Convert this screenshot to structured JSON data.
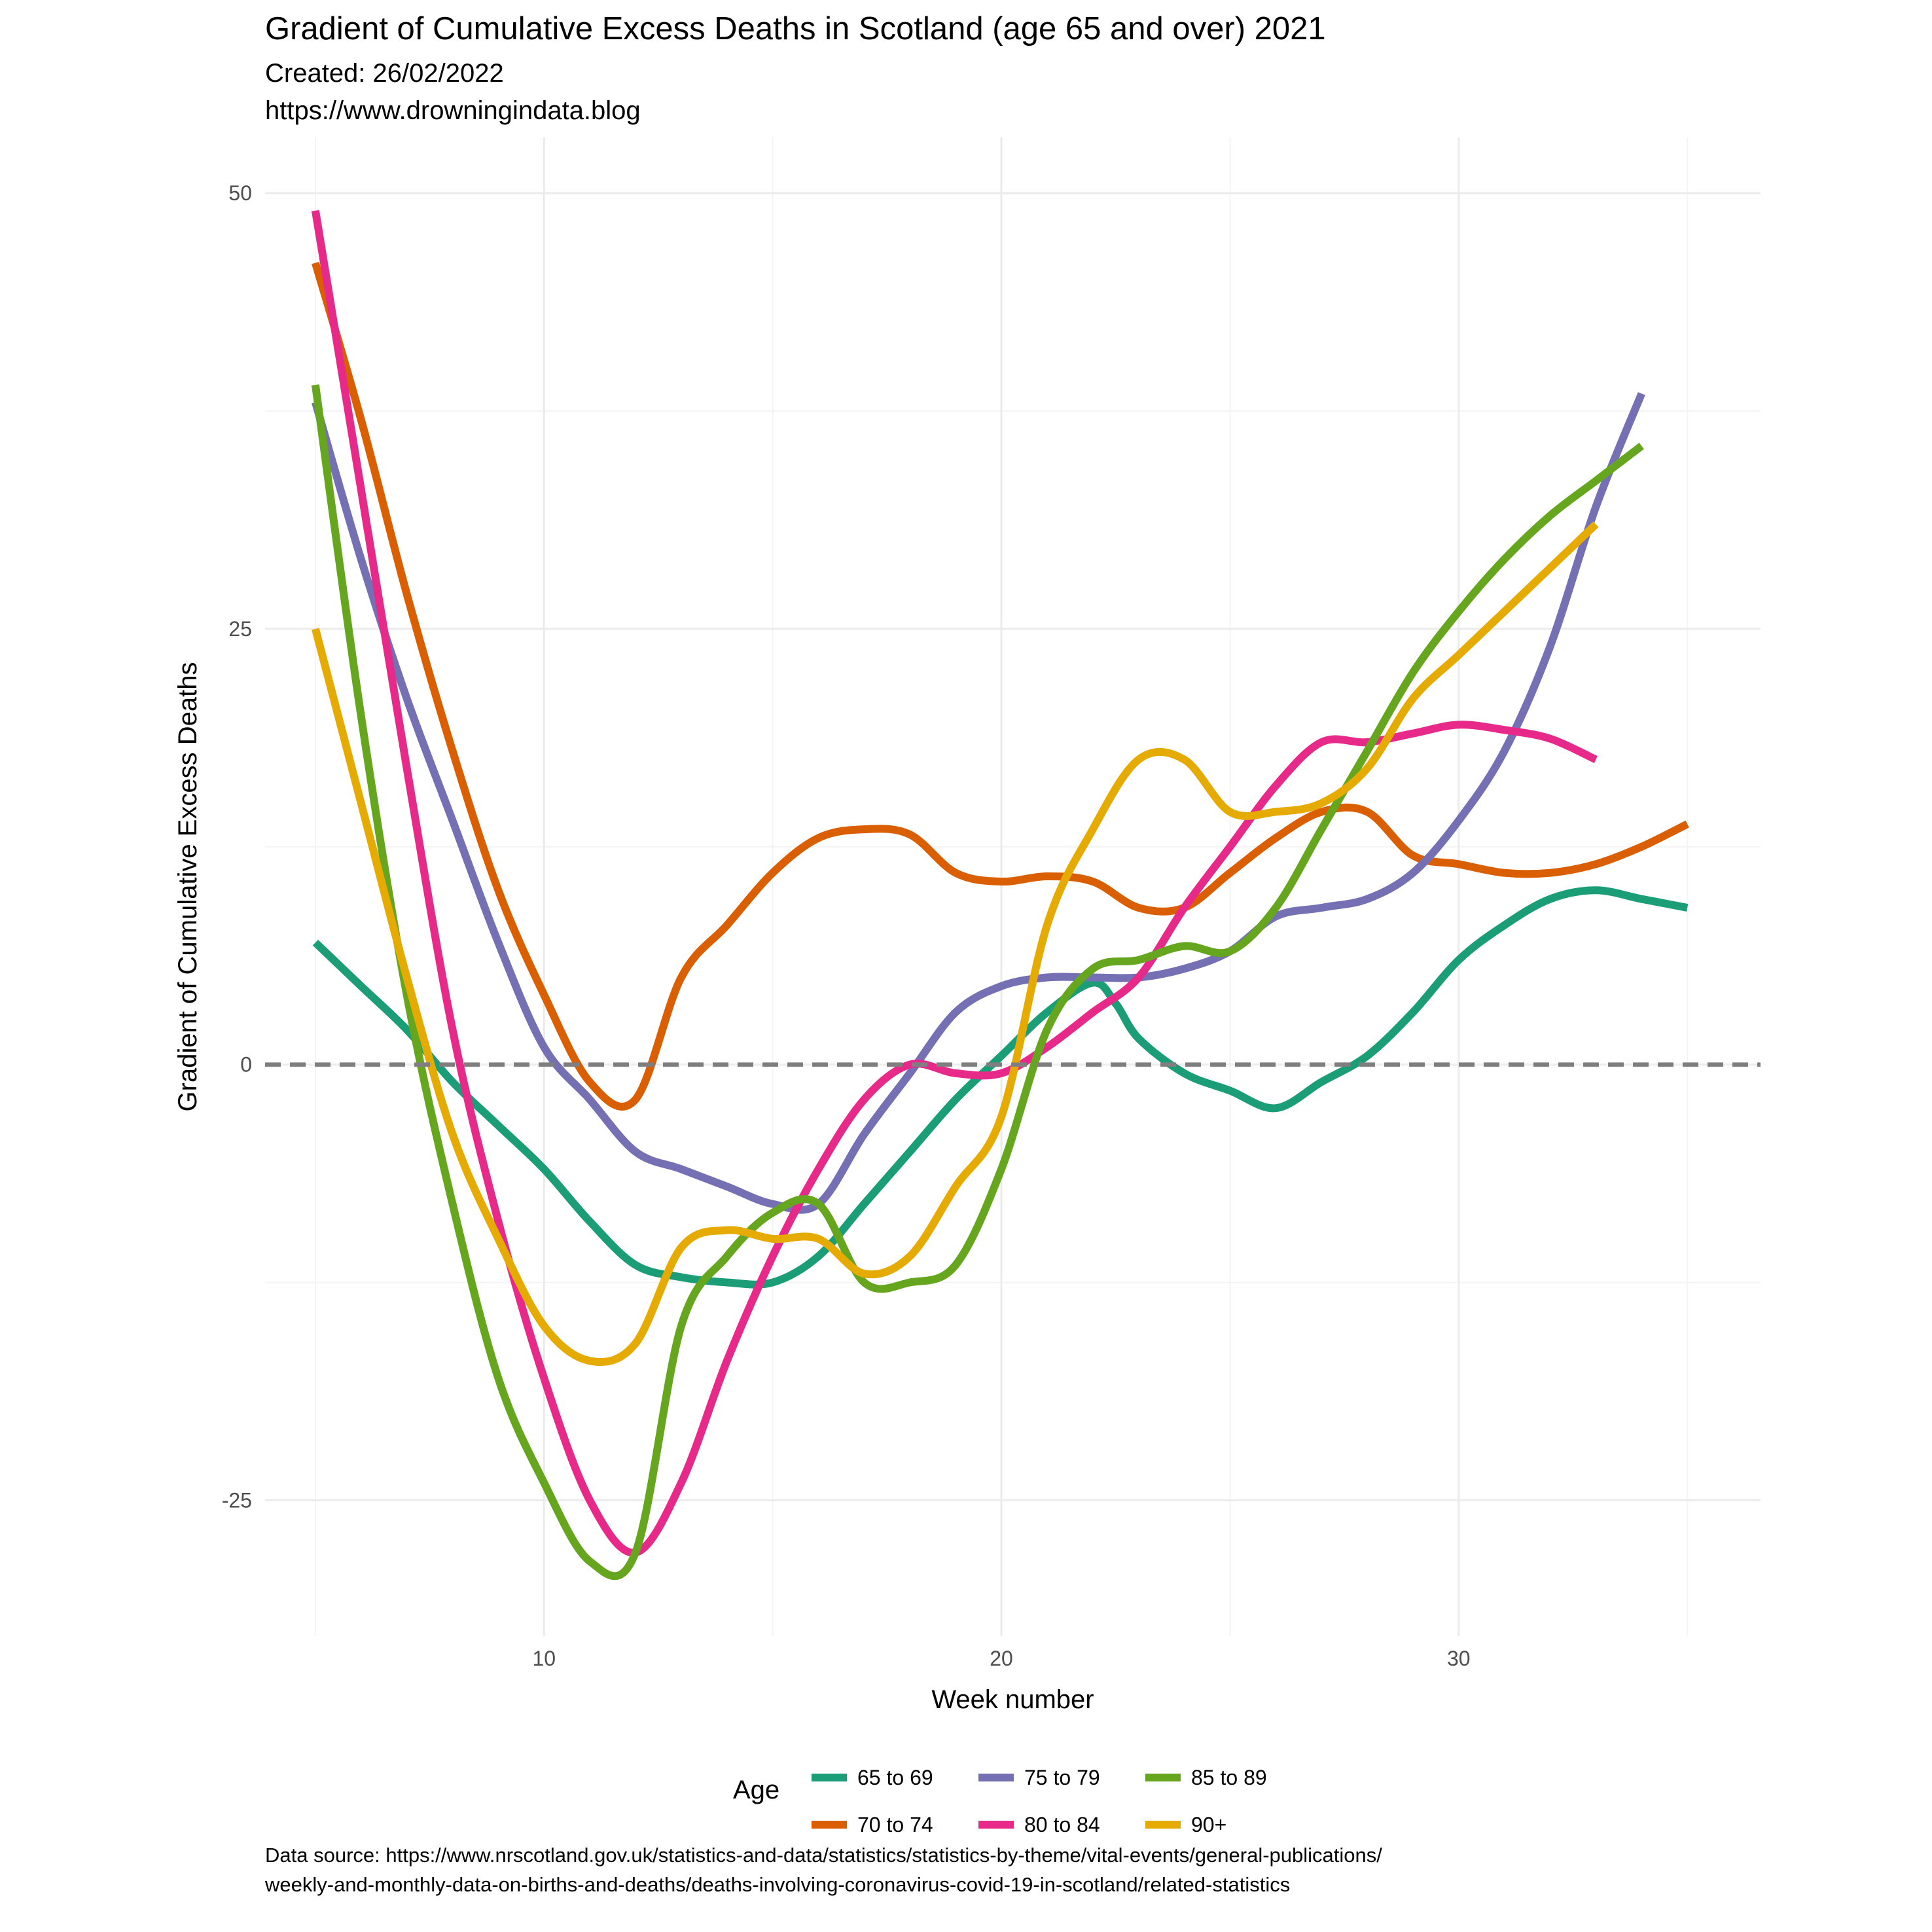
{
  "chart_data": {
    "type": "line",
    "title": "Gradient of Cumulative Excess Deaths in Scotland (age 65 and over) 2021",
    "subtitle_lines": [
      "Created:  26/02/2022",
      "https://www.drowningindata.blog"
    ],
    "xlabel": "Week number",
    "ylabel": "Gradient of Cumulative Excess Deaths",
    "xlim": [
      3.9,
      36.6
    ],
    "ylim": [
      -32.8,
      53.2
    ],
    "x_ticks": [
      10,
      20,
      30
    ],
    "x_tick_labels": [
      "10",
      "20",
      "30"
    ],
    "x_minor_ticks": [
      5,
      15,
      25,
      35
    ],
    "y_ticks": [
      -25,
      0,
      25,
      50
    ],
    "y_tick_labels": [
      "-25",
      "0",
      "25",
      "50"
    ],
    "y_minor_ticks": [
      -12.5,
      12.5,
      37.5
    ],
    "reference_line": {
      "y": 0,
      "style": "dashed",
      "color": "#7f7f7f"
    },
    "grid": true,
    "legend": {
      "title": "Age",
      "position": "bottom"
    },
    "caption_lines": [
      "Data source: https://www.nrscotland.gov.uk/statistics-and-data/statistics/statistics-by-theme/vital-events/general-publications/",
      "weekly-and-monthly-data-on-births-and-deaths/deaths-involving-coronavirus-covid-19-in-scotland/related-statistics"
    ],
    "series": [
      {
        "name": "65 to 69",
        "color": "#1b9e77",
        "points": [
          [
            5,
            7
          ],
          [
            6,
            4.5
          ],
          [
            7,
            2
          ],
          [
            8,
            -1
          ],
          [
            9,
            -3.5
          ],
          [
            10,
            -6
          ],
          [
            11,
            -9
          ],
          [
            12,
            -11.5
          ],
          [
            13,
            -12.2
          ],
          [
            14,
            -12.5
          ],
          [
            15,
            -12.5
          ],
          [
            16,
            -11
          ],
          [
            17,
            -8
          ],
          [
            18,
            -5
          ],
          [
            19,
            -2
          ],
          [
            20,
            0.5
          ],
          [
            21,
            3
          ],
          [
            22,
            4.7
          ],
          [
            22.5,
            3.5
          ],
          [
            23,
            1.5
          ],
          [
            24,
            -0.5
          ],
          [
            25,
            -1.5
          ],
          [
            26,
            -2.5
          ],
          [
            27,
            -1
          ],
          [
            28,
            0.5
          ],
          [
            29,
            3
          ],
          [
            30,
            6
          ],
          [
            31,
            8
          ],
          [
            32,
            9.5
          ],
          [
            33,
            10
          ],
          [
            34,
            9.5
          ],
          [
            35,
            9
          ]
        ]
      },
      {
        "name": "70 to 74",
        "color": "#d95f02",
        "points": [
          [
            5,
            46
          ],
          [
            6,
            37
          ],
          [
            7,
            27
          ],
          [
            8,
            18
          ],
          [
            9,
            10
          ],
          [
            10,
            4
          ],
          [
            11,
            -1
          ],
          [
            12,
            -2
          ],
          [
            13,
            5
          ],
          [
            14,
            8
          ],
          [
            15,
            11
          ],
          [
            16,
            13
          ],
          [
            17,
            13.5
          ],
          [
            18,
            13.2
          ],
          [
            19,
            11
          ],
          [
            20,
            10.5
          ],
          [
            21,
            10.8
          ],
          [
            22,
            10.5
          ],
          [
            23,
            9
          ],
          [
            24,
            9
          ],
          [
            25,
            11
          ],
          [
            26,
            13
          ],
          [
            27,
            14.5
          ],
          [
            28,
            14.5
          ],
          [
            29,
            12
          ],
          [
            30,
            11.5
          ],
          [
            31,
            11
          ],
          [
            32,
            11
          ],
          [
            33,
            11.5
          ],
          [
            34,
            12.5
          ],
          [
            35,
            13.8
          ]
        ]
      },
      {
        "name": "75 to 79",
        "color": "#7570b3",
        "points": [
          [
            5,
            38
          ],
          [
            6,
            29
          ],
          [
            7,
            21
          ],
          [
            8,
            14
          ],
          [
            9,
            7
          ],
          [
            10,
            1
          ],
          [
            11,
            -2
          ],
          [
            12,
            -5
          ],
          [
            13,
            -6
          ],
          [
            14,
            -7
          ],
          [
            15,
            -8
          ],
          [
            16,
            -8
          ],
          [
            17,
            -4
          ],
          [
            18,
            -0.5
          ],
          [
            19,
            3
          ],
          [
            20,
            4.5
          ],
          [
            21,
            5
          ],
          [
            22,
            5
          ],
          [
            23,
            5
          ],
          [
            24,
            5.5
          ],
          [
            25,
            6.5
          ],
          [
            26,
            8.5
          ],
          [
            27,
            9
          ],
          [
            28,
            9.5
          ],
          [
            29,
            11
          ],
          [
            30,
            14
          ],
          [
            31,
            18
          ],
          [
            32,
            24
          ],
          [
            33,
            32
          ],
          [
            34,
            38.5
          ]
        ]
      },
      {
        "name": "80 to 84",
        "color": "#e7298a",
        "points": [
          [
            5,
            49
          ],
          [
            6,
            33
          ],
          [
            7,
            17
          ],
          [
            8,
            2
          ],
          [
            9,
            -9
          ],
          [
            10,
            -18
          ],
          [
            11,
            -25
          ],
          [
            12,
            -28
          ],
          [
            13,
            -24
          ],
          [
            14,
            -17
          ],
          [
            15,
            -11
          ],
          [
            16,
            -6
          ],
          [
            17,
            -2
          ],
          [
            18,
            0
          ],
          [
            19,
            -0.5
          ],
          [
            20,
            -0.5
          ],
          [
            21,
            1
          ],
          [
            22,
            3
          ],
          [
            23,
            5
          ],
          [
            24,
            9
          ],
          [
            25,
            12.5
          ],
          [
            26,
            16
          ],
          [
            27,
            18.5
          ],
          [
            28,
            18.5
          ],
          [
            29,
            19
          ],
          [
            30,
            19.5
          ],
          [
            31,
            19.2
          ],
          [
            32,
            18.7
          ],
          [
            33,
            17.5
          ]
        ]
      },
      {
        "name": "85 to 89",
        "color": "#66a61e",
        "points": [
          [
            5,
            39
          ],
          [
            6,
            20
          ],
          [
            7,
            4
          ],
          [
            8,
            -8
          ],
          [
            9,
            -18
          ],
          [
            10,
            -24
          ],
          [
            11,
            -28.5
          ],
          [
            12,
            -28
          ],
          [
            13,
            -15
          ],
          [
            14,
            -11
          ],
          [
            15,
            -8.5
          ],
          [
            16,
            -8
          ],
          [
            17,
            -12.5
          ],
          [
            18,
            -12.5
          ],
          [
            19,
            -11.5
          ],
          [
            20,
            -6
          ],
          [
            21,
            2
          ],
          [
            22,
            5.5
          ],
          [
            23,
            6
          ],
          [
            24,
            6.8
          ],
          [
            25,
            6.5
          ],
          [
            26,
            9
          ],
          [
            27,
            13.5
          ],
          [
            28,
            18
          ],
          [
            29,
            22.5
          ],
          [
            30,
            26
          ],
          [
            31,
            29
          ],
          [
            32,
            31.5
          ],
          [
            33,
            33.5
          ],
          [
            34,
            35.5
          ]
        ]
      },
      {
        "name": "90+",
        "color": "#e6ab02",
        "points": [
          [
            5,
            25
          ],
          [
            6,
            15
          ],
          [
            7,
            5
          ],
          [
            8,
            -4
          ],
          [
            9,
            -10
          ],
          [
            10,
            -15
          ],
          [
            11,
            -17
          ],
          [
            12,
            -16
          ],
          [
            13,
            -10.5
          ],
          [
            14,
            -9.5
          ],
          [
            15,
            -10
          ],
          [
            16,
            -10
          ],
          [
            17,
            -12
          ],
          [
            18,
            -11
          ],
          [
            19,
            -7
          ],
          [
            20,
            -3
          ],
          [
            21,
            8
          ],
          [
            22,
            13.5
          ],
          [
            23,
            17.5
          ],
          [
            24,
            17.5
          ],
          [
            25,
            14.5
          ],
          [
            26,
            14.5
          ],
          [
            27,
            15
          ],
          [
            28,
            17
          ],
          [
            29,
            21
          ],
          [
            30,
            23.5
          ],
          [
            31,
            26
          ],
          [
            32,
            28.5
          ],
          [
            33,
            31
          ]
        ]
      }
    ]
  }
}
